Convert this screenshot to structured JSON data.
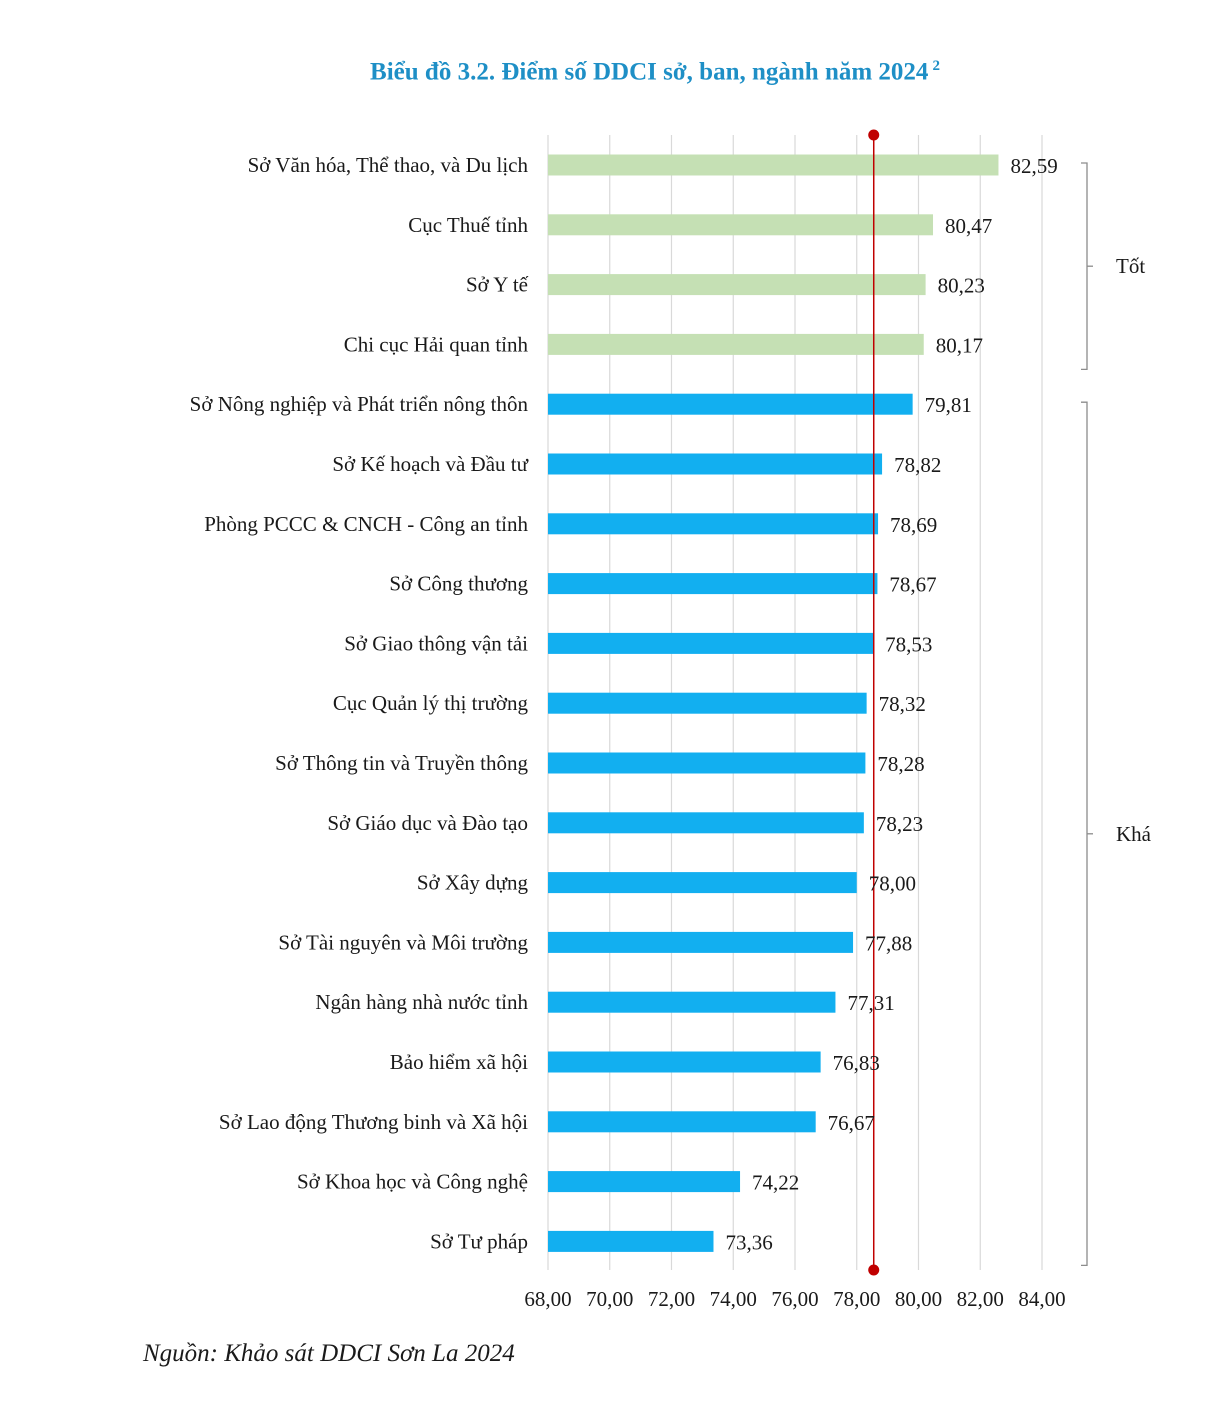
{
  "title": "Biểu đồ 3.2. Điểm số DDCI sở, ban, ngành năm 2024",
  "title_footnote": "2",
  "source": "Nguồn: Khảo sát DDCI Sơn La 2024",
  "colors": {
    "title": "#1e8fc6",
    "good": "#c5e0b4",
    "fair": "#12aff0",
    "reference_line": "#c00000",
    "grid": "#d9d9d9"
  },
  "chart_data": {
    "type": "bar",
    "orientation": "horizontal",
    "xlim": [
      68,
      84
    ],
    "xticks": [
      "68,00",
      "70,00",
      "72,00",
      "74,00",
      "76,00",
      "78,00",
      "80,00",
      "82,00",
      "84,00"
    ],
    "reference_value": 78.55,
    "grid": true,
    "categories": [
      "Sở Văn hóa, Thể thao, và Du lịch",
      "Cục Thuế tỉnh",
      "Sở Y tế",
      "Chi cục Hải quan tỉnh",
      "Sở Nông nghiệp và Phát triển nông thôn",
      "Sở Kế hoạch và Đầu tư",
      "Phòng PCCC & CNCH - Công an tỉnh",
      "Sở Công thương",
      "Sở Giao thông vận tải",
      "Cục Quản lý thị trường",
      "Sở Thông tin và Truyền thông",
      "Sở Giáo dục và Đào tạo",
      "Sở Xây dựng",
      "Sở Tài nguyên và Môi trường",
      "Ngân hàng nhà nước tỉnh",
      "Bảo hiểm xã hội",
      "Sở Lao động Thương binh và Xã hội",
      "Sở Khoa học và Công nghệ",
      "Sở Tư pháp"
    ],
    "values": [
      82.59,
      80.47,
      80.23,
      80.17,
      79.81,
      78.82,
      78.69,
      78.67,
      78.53,
      78.32,
      78.28,
      78.23,
      78.0,
      77.88,
      77.31,
      76.83,
      76.67,
      74.22,
      73.36
    ],
    "value_labels": [
      "82,59",
      "80,47",
      "80,23",
      "80,17",
      "79,81",
      "78,82",
      "78,69",
      "78,67",
      "78,53",
      "78,32",
      "78,28",
      "78,23",
      "78,00",
      "77,88",
      "77,31",
      "76,83",
      "76,67",
      "74,22",
      "73,36"
    ],
    "groups": [
      {
        "label": "Tốt",
        "from": 0,
        "to": 3,
        "color_key": "good"
      },
      {
        "label": "Khá",
        "from": 4,
        "to": 18,
        "color_key": "fair"
      }
    ]
  }
}
